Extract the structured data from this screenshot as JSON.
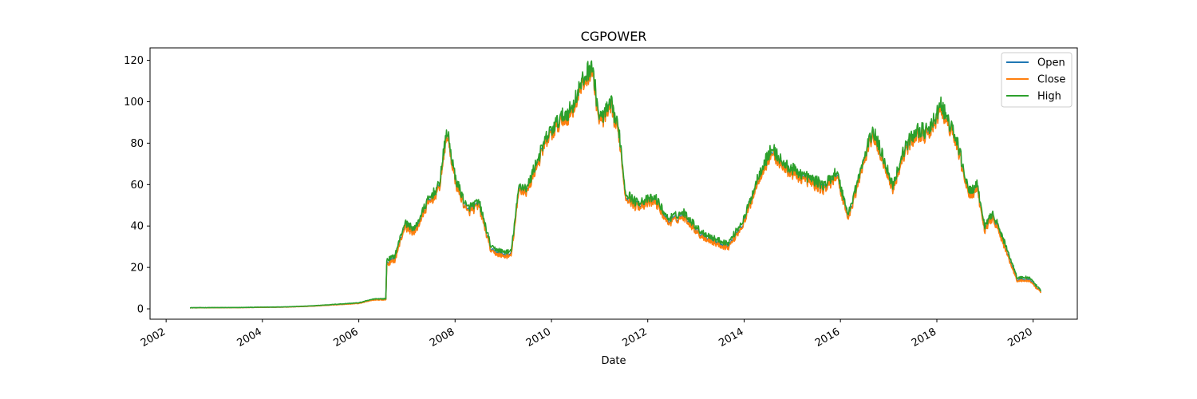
{
  "chart_data": {
    "type": "line",
    "title": "CGPOWER",
    "xlabel": "Date",
    "ylabel": "",
    "xlim": [
      "2001-09-01",
      "2020-12-01"
    ],
    "ylim": [
      -5,
      126
    ],
    "x_ticks": [
      "2002",
      "2004",
      "2006",
      "2008",
      "2010",
      "2012",
      "2014",
      "2016",
      "2018",
      "2020"
    ],
    "y_ticks": [
      0,
      20,
      40,
      60,
      80,
      100,
      120
    ],
    "grid": false,
    "legend_position": "top-right",
    "x_tick_rotation": "diagonal",
    "anchors": [
      [
        "2002-07-01",
        0.5
      ],
      [
        "2003-07-01",
        0.6
      ],
      [
        "2004-07-01",
        0.9
      ],
      [
        "2005-01-01",
        1.3
      ],
      [
        "2005-07-01",
        2.0
      ],
      [
        "2006-01-01",
        2.7
      ],
      [
        "2006-05-01",
        4.5
      ],
      [
        "2006-07-25",
        4.5
      ],
      [
        "2006-08-01",
        22.0
      ],
      [
        "2006-10-01",
        24.0
      ],
      [
        "2006-12-15",
        40.0
      ],
      [
        "2007-03-01",
        37.0
      ],
      [
        "2007-06-01",
        50.0
      ],
      [
        "2007-09-01",
        58.0
      ],
      [
        "2007-11-01",
        85.0
      ],
      [
        "2008-01-01",
        62.0
      ],
      [
        "2008-04-01",
        47.0
      ],
      [
        "2008-07-01",
        50.0
      ],
      [
        "2008-10-01",
        28.0
      ],
      [
        "2009-01-01",
        26.0
      ],
      [
        "2009-03-01",
        26.0
      ],
      [
        "2009-05-01",
        58.0
      ],
      [
        "2009-07-01",
        57.0
      ],
      [
        "2009-09-01",
        68.0
      ],
      [
        "2009-12-01",
        82.0
      ],
      [
        "2010-03-01",
        90.0
      ],
      [
        "2010-06-01",
        95.0
      ],
      [
        "2010-08-01",
        105.0
      ],
      [
        "2010-11-01",
        117.0
      ],
      [
        "2011-01-01",
        90.0
      ],
      [
        "2011-04-01",
        97.0
      ],
      [
        "2011-06-01",
        83.0
      ],
      [
        "2011-07-15",
        55.0
      ],
      [
        "2011-10-01",
        50.0
      ],
      [
        "2012-03-01",
        52.0
      ],
      [
        "2012-06-01",
        42.0
      ],
      [
        "2012-10-01",
        45.0
      ],
      [
        "2013-02-01",
        36.0
      ],
      [
        "2013-06-01",
        32.0
      ],
      [
        "2013-09-01",
        30.0
      ],
      [
        "2014-01-01",
        42.0
      ],
      [
        "2014-05-01",
        65.0
      ],
      [
        "2014-08-01",
        76.0
      ],
      [
        "2014-11-01",
        68.0
      ],
      [
        "2015-04-01",
        63.0
      ],
      [
        "2015-09-01",
        58.0
      ],
      [
        "2015-12-01",
        65.0
      ],
      [
        "2016-03-01",
        44.0
      ],
      [
        "2016-06-01",
        65.0
      ],
      [
        "2016-09-01",
        85.0
      ],
      [
        "2016-12-01",
        70.0
      ],
      [
        "2017-02-01",
        58.0
      ],
      [
        "2017-05-01",
        76.0
      ],
      [
        "2017-08-01",
        85.0
      ],
      [
        "2017-11-01",
        84.0
      ],
      [
        "2018-02-01",
        97.0
      ],
      [
        "2018-06-01",
        80.0
      ],
      [
        "2018-09-01",
        55.0
      ],
      [
        "2018-11-01",
        58.0
      ],
      [
        "2019-01-01",
        38.0
      ],
      [
        "2019-03-01",
        45.0
      ],
      [
        "2019-06-01",
        30.0
      ],
      [
        "2019-09-01",
        14.0
      ],
      [
        "2019-12-01",
        14.0
      ],
      [
        "2020-03-01",
        8.0
      ]
    ],
    "series": [
      {
        "name": "Open",
        "color": "#1f77b4",
        "offset": 0.0
      },
      {
        "name": "Close",
        "color": "#ff7f0e",
        "offset": -0.6
      },
      {
        "name": "High",
        "color": "#2ca02c",
        "offset": 1.6
      }
    ]
  }
}
